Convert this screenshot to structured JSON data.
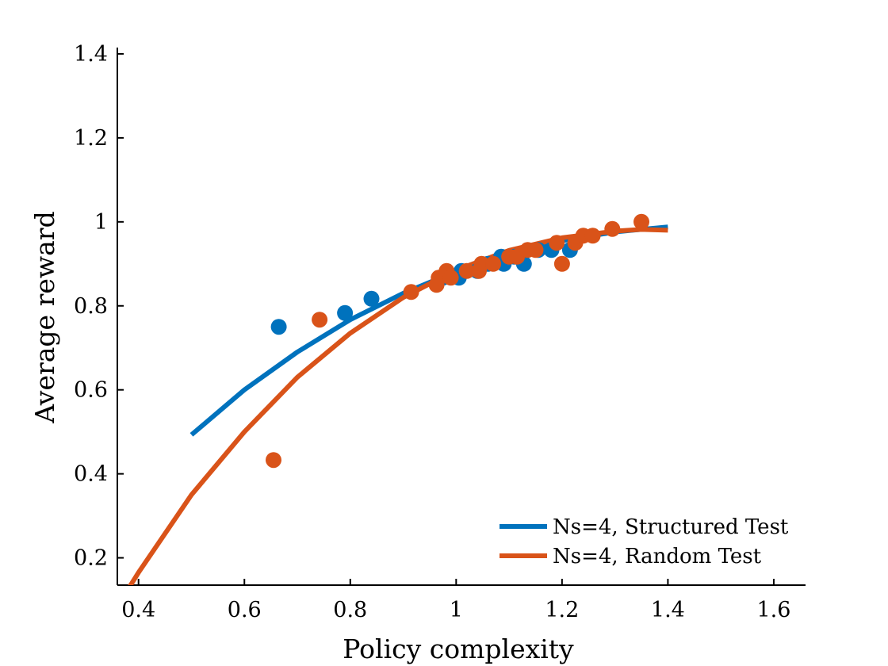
{
  "chart_data": {
    "type": "scatter",
    "title": "",
    "xlabel": "Policy complexity",
    "ylabel": "Average reward",
    "xlim": [
      0.36,
      1.66
    ],
    "ylim": [
      0.135,
      1.415
    ],
    "xticks": [
      0.4,
      0.6,
      0.8,
      1.0,
      1.2,
      1.4,
      1.6
    ],
    "xtick_labels": [
      "0.4",
      "0.6",
      "0.8",
      "1",
      "1.2",
      "1.4",
      "1.6"
    ],
    "yticks": [
      0.2,
      0.4,
      0.6,
      0.8,
      1.0,
      1.2,
      1.4
    ],
    "ytick_labels": [
      "0.2",
      "0.4",
      "0.6",
      "0.8",
      "1",
      "1.2",
      "1.4"
    ],
    "grid": false,
    "legend_position": "bottom-right",
    "series": [
      {
        "name": "Ns=4, Structured Test",
        "color": "#0072BD",
        "points": [
          {
            "x": 0.665,
            "y": 0.75
          },
          {
            "x": 0.79,
            "y": 0.783
          },
          {
            "x": 0.84,
            "y": 0.817
          },
          {
            "x": 0.975,
            "y": 0.867
          },
          {
            "x": 1.005,
            "y": 0.867
          },
          {
            "x": 1.01,
            "y": 0.883
          },
          {
            "x": 1.04,
            "y": 0.883
          },
          {
            "x": 1.06,
            "y": 0.9
          },
          {
            "x": 1.085,
            "y": 0.917
          },
          {
            "x": 1.09,
            "y": 0.9
          },
          {
            "x": 1.11,
            "y": 0.917
          },
          {
            "x": 1.128,
            "y": 0.9
          },
          {
            "x": 1.155,
            "y": 0.933
          },
          {
            "x": 1.18,
            "y": 0.933
          },
          {
            "x": 1.215,
            "y": 0.933
          }
        ],
        "fit_curve": [
          {
            "x": 0.5,
            "y": 0.493
          },
          {
            "x": 0.6,
            "y": 0.6
          },
          {
            "x": 0.7,
            "y": 0.69
          },
          {
            "x": 0.8,
            "y": 0.767
          },
          {
            "x": 0.9,
            "y": 0.83
          },
          {
            "x": 1.0,
            "y": 0.882
          },
          {
            "x": 1.1,
            "y": 0.925
          },
          {
            "x": 1.2,
            "y": 0.955
          },
          {
            "x": 1.3,
            "y": 0.976
          },
          {
            "x": 1.4,
            "y": 0.988
          }
        ]
      },
      {
        "name": "Ns=4, Random Test",
        "color": "#D95319",
        "points": [
          {
            "x": 0.655,
            "y": 0.433
          },
          {
            "x": 0.742,
            "y": 0.767
          },
          {
            "x": 0.915,
            "y": 0.833
          },
          {
            "x": 0.963,
            "y": 0.85
          },
          {
            "x": 0.967,
            "y": 0.867
          },
          {
            "x": 0.982,
            "y": 0.883
          },
          {
            "x": 0.99,
            "y": 0.867
          },
          {
            "x": 1.02,
            "y": 0.883
          },
          {
            "x": 1.043,
            "y": 0.883
          },
          {
            "x": 1.048,
            "y": 0.9
          },
          {
            "x": 1.07,
            "y": 0.9
          },
          {
            "x": 1.1,
            "y": 0.917
          },
          {
            "x": 1.115,
            "y": 0.917
          },
          {
            "x": 1.135,
            "y": 0.933
          },
          {
            "x": 1.15,
            "y": 0.933
          },
          {
            "x": 1.19,
            "y": 0.95
          },
          {
            "x": 1.2,
            "y": 0.9
          },
          {
            "x": 1.225,
            "y": 0.95
          },
          {
            "x": 1.24,
            "y": 0.967
          },
          {
            "x": 1.258,
            "y": 0.967
          },
          {
            "x": 1.295,
            "y": 0.983
          },
          {
            "x": 1.35,
            "y": 1.0
          }
        ],
        "fit_curve": [
          {
            "x": 0.38,
            "y": 0.125
          },
          {
            "x": 0.4,
            "y": 0.165
          },
          {
            "x": 0.5,
            "y": 0.35
          },
          {
            "x": 0.6,
            "y": 0.5
          },
          {
            "x": 0.7,
            "y": 0.63
          },
          {
            "x": 0.8,
            "y": 0.735
          },
          {
            "x": 0.9,
            "y": 0.82
          },
          {
            "x": 1.0,
            "y": 0.885
          },
          {
            "x": 1.1,
            "y": 0.932
          },
          {
            "x": 1.2,
            "y": 0.962
          },
          {
            "x": 1.3,
            "y": 0.978
          },
          {
            "x": 1.35,
            "y": 0.982
          },
          {
            "x": 1.4,
            "y": 0.98
          }
        ]
      }
    ]
  }
}
